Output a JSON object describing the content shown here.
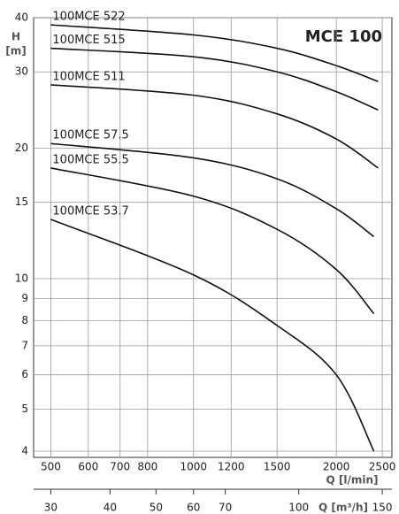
{
  "chart_data": {
    "type": "line",
    "title": "MCE 100",
    "ylabel": "H",
    "yunit": "[m]",
    "xlabel": "Q [l/min]",
    "x2label": "Q [m³/h]",
    "log_x": true,
    "log_y": true,
    "grid": true,
    "color": "#111111",
    "xlim": [
      460,
      2620
    ],
    "xticks": [
      500,
      600,
      700,
      800,
      1000,
      1200,
      1500,
      2000,
      2500
    ],
    "x2lim": [
      27.6,
      157.2
    ],
    "x2ticks": [
      30,
      40,
      50,
      60,
      70,
      100,
      150
    ],
    "ylim": [
      3.87,
      40
    ],
    "yticks": [
      4,
      5,
      6,
      7,
      8,
      9,
      10,
      15,
      20,
      30,
      40
    ],
    "series": [
      {
        "name": "100MCE 522",
        "x": [
          500,
          1000,
          1500,
          2000,
          2450
        ],
        "values": [
          38.5,
          36.5,
          34,
          31,
          28.5
        ]
      },
      {
        "name": "100MCE 515",
        "x": [
          500,
          1000,
          1500,
          2000,
          2450
        ],
        "values": [
          34,
          32.5,
          30,
          27,
          24.5
        ]
      },
      {
        "name": "100MCE 511",
        "x": [
          500,
          1000,
          1500,
          2000,
          2450
        ],
        "values": [
          28,
          26.5,
          24,
          21,
          18
        ]
      },
      {
        "name": "100MCE 57.5",
        "x": [
          500,
          1000,
          1500,
          2000,
          2400
        ],
        "values": [
          20.5,
          19,
          17,
          14.5,
          12.5
        ]
      },
      {
        "name": "100MCE 55.5",
        "x": [
          500,
          1000,
          1500,
          2000,
          2400
        ],
        "values": [
          18,
          15.5,
          13,
          10.5,
          8.3
        ]
      },
      {
        "name": "100MCE 53.7",
        "x": [
          500,
          1000,
          1500,
          2000,
          2400
        ],
        "values": [
          13.7,
          10.2,
          7.8,
          6,
          4
        ]
      }
    ]
  }
}
